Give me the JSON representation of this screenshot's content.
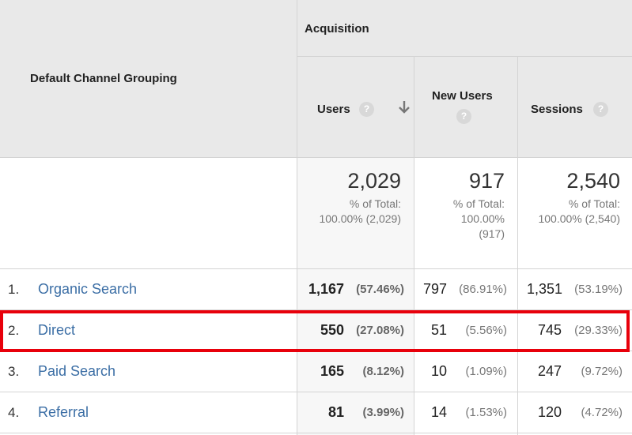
{
  "headers": {
    "dimension": "Default Channel Grouping",
    "group": "Acquisition",
    "users": "Users",
    "new_users": "New Users",
    "sessions": "Sessions",
    "help_glyph": "?"
  },
  "totals": {
    "users": {
      "value": "2,029",
      "sub1": "% of Total:",
      "sub2": "100.00% (2,029)"
    },
    "new_users": {
      "value": "917",
      "sub1": "% of Total:",
      "sub2": "100.00%",
      "sub3": "(917)"
    },
    "sessions": {
      "value": "2,540",
      "sub1": "% of Total:",
      "sub2": "100.00% (2,540)"
    }
  },
  "rows": [
    {
      "num": "1.",
      "channel": "Organic Search",
      "users": "1,167",
      "users_pct": "(57.46%)",
      "new_users": "797",
      "new_users_pct": "(86.91%)",
      "sessions": "1,351",
      "sessions_pct": "(53.19%)"
    },
    {
      "num": "2.",
      "channel": "Direct",
      "users": "550",
      "users_pct": "(27.08%)",
      "new_users": "51",
      "new_users_pct": "(5.56%)",
      "sessions": "745",
      "sessions_pct": "(29.33%)"
    },
    {
      "num": "3.",
      "channel": "Paid Search",
      "users": "165",
      "users_pct": "(8.12%)",
      "new_users": "10",
      "new_users_pct": "(1.09%)",
      "sessions": "247",
      "sessions_pct": "(9.72%)"
    },
    {
      "num": "4.",
      "channel": "Referral",
      "users": "81",
      "users_pct": "(3.99%)",
      "new_users": "14",
      "new_users_pct": "(1.53%)",
      "sessions": "120",
      "sessions_pct": "(4.72%)"
    }
  ],
  "colors": {
    "highlight": "#e8000b",
    "link": "#3b6ea5",
    "header_bg": "#e9e9e9"
  },
  "icons": {
    "sort": "arrow-down-icon",
    "help": "help-circle-icon"
  }
}
